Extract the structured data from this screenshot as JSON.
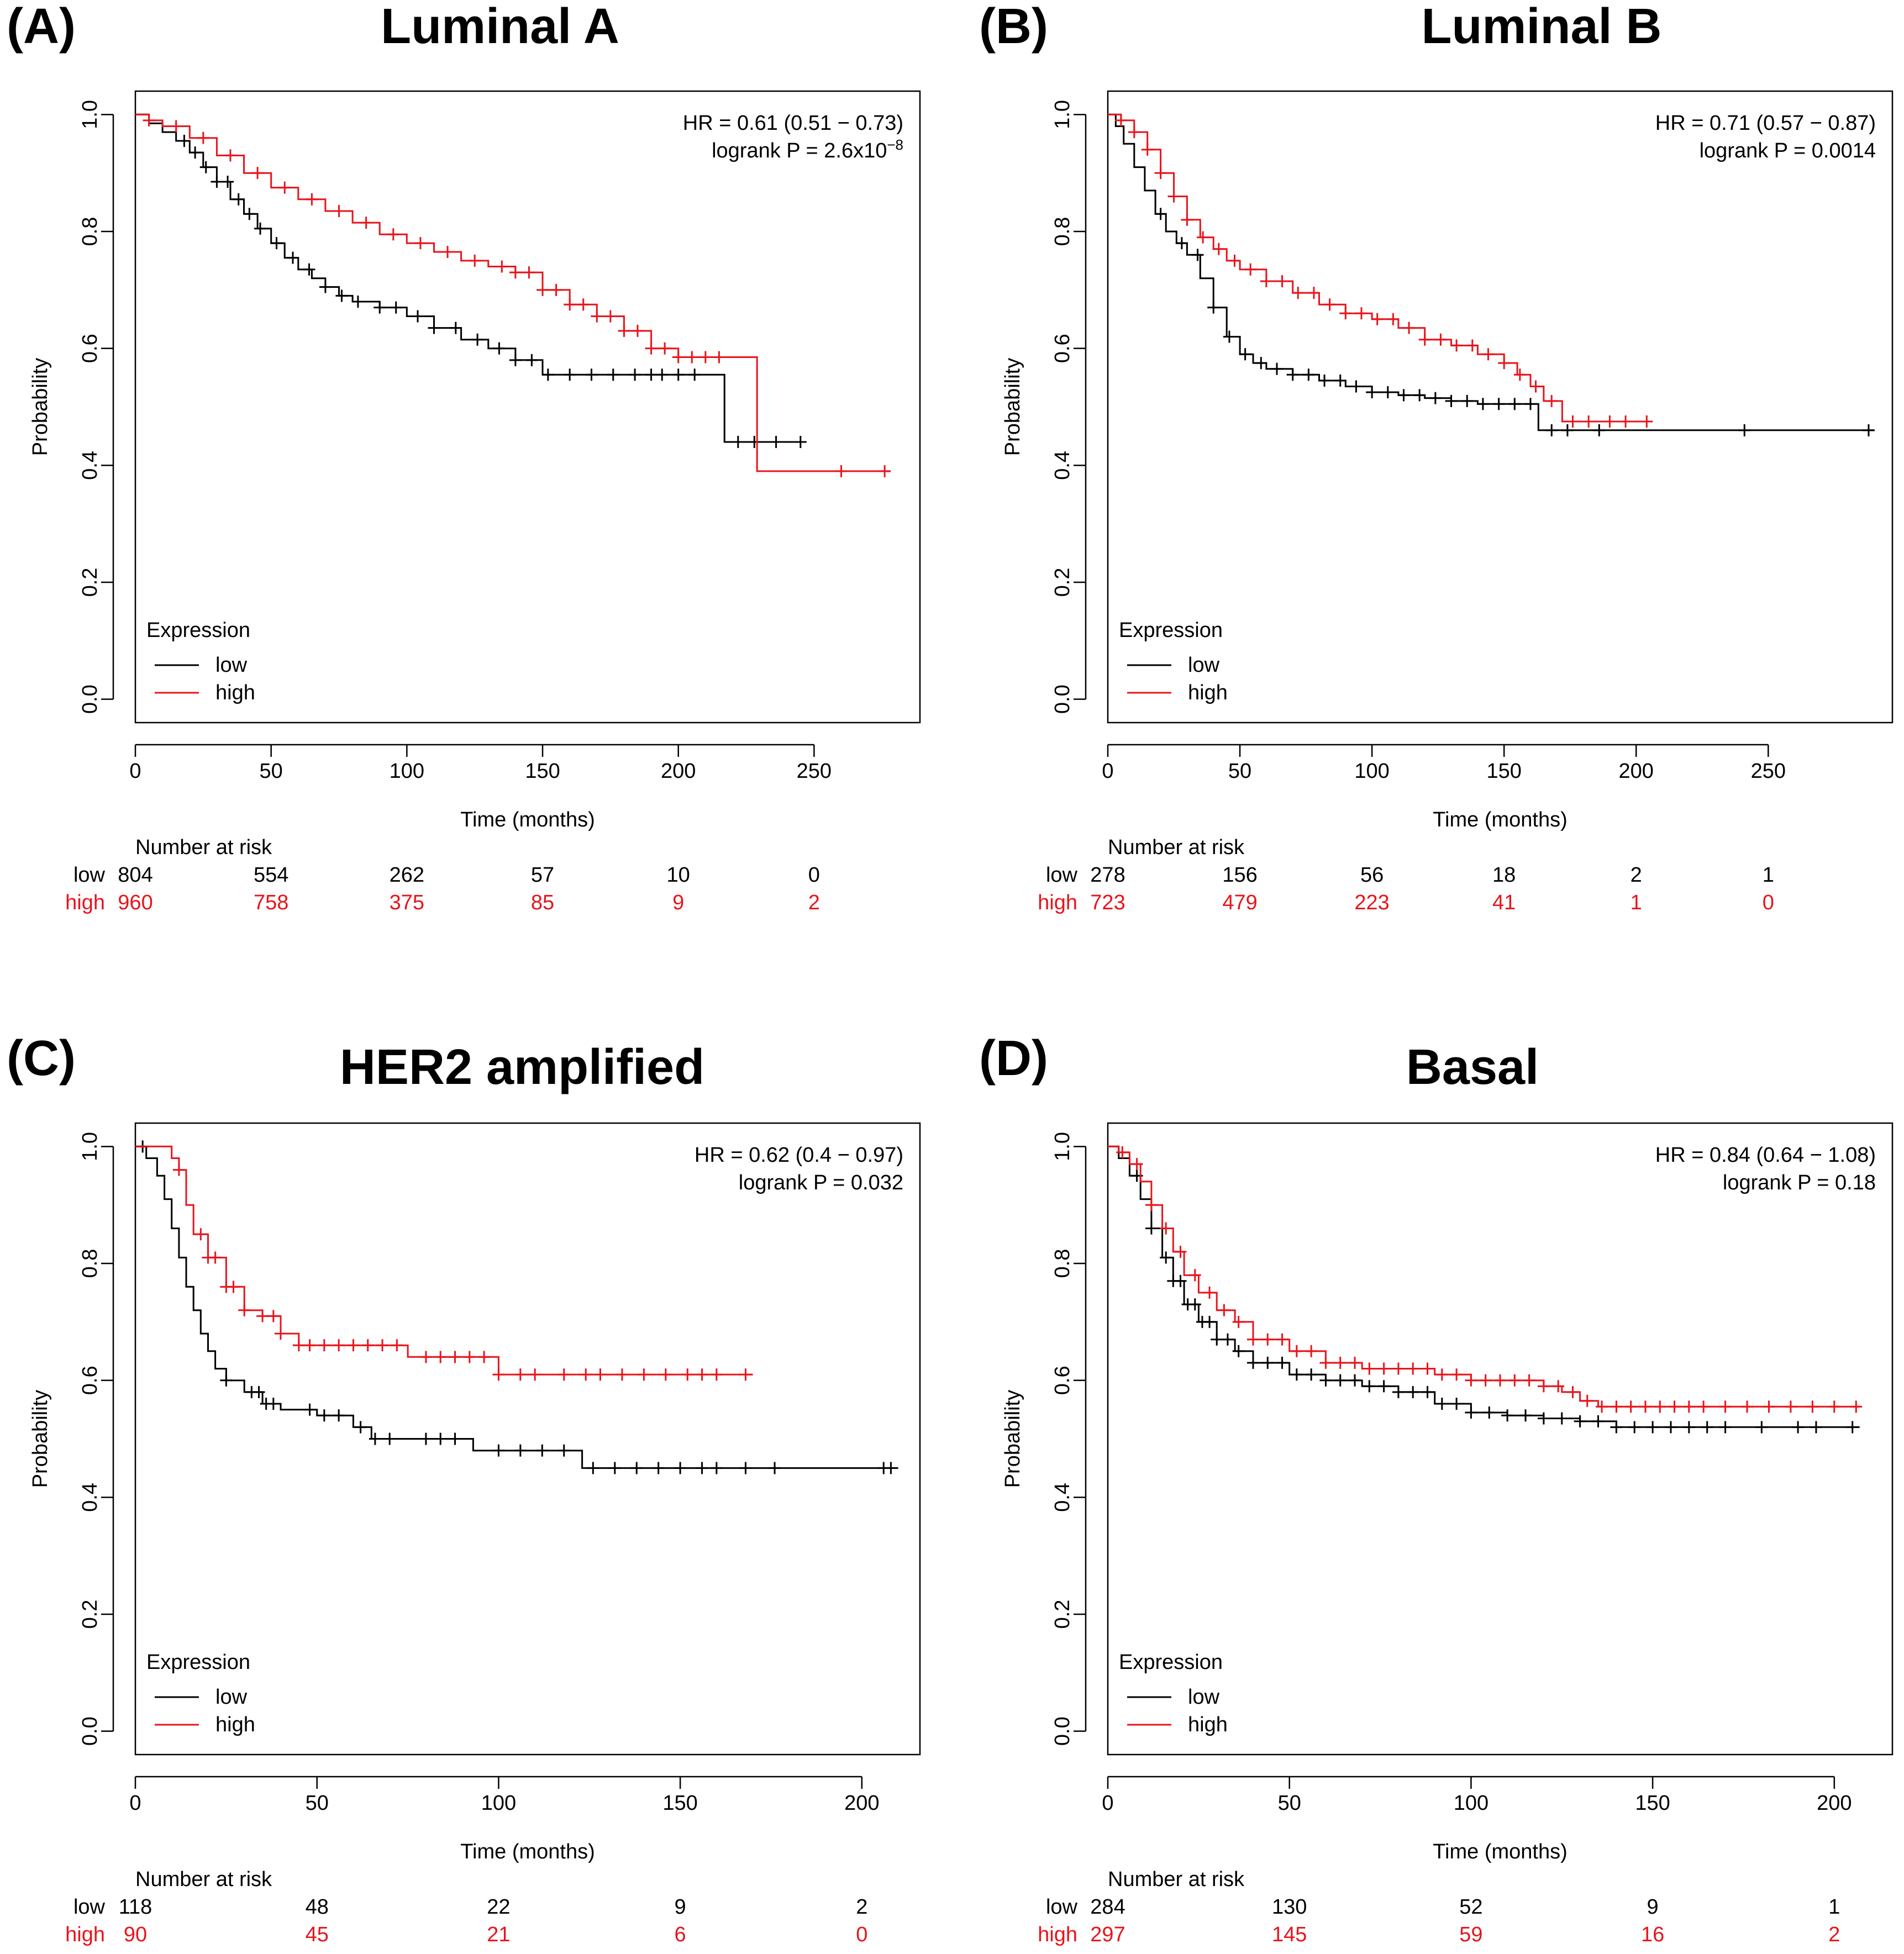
{
  "chart_data": [
    {
      "type": "line",
      "panel_label": "(A)",
      "title": "Luminal A",
      "ylabel": "Probability",
      "xlabel": "Time (months)",
      "xlim": [
        0,
        289
      ],
      "ylim": [
        -0.04,
        1.04
      ],
      "xticks": [
        "0",
        "50",
        "100",
        "150",
        "200",
        "250"
      ],
      "yticks": [
        "0.0",
        "0.2",
        "0.4",
        "0.6",
        "0.8",
        "1.0"
      ],
      "hr_text": "HR = 0.61 (0.51 − 0.73)",
      "p_text": "logrank P = 2.6x10",
      "p_exponent": "−8",
      "legend": {
        "title": "Expression",
        "entries": [
          "low",
          "high"
        ],
        "position": "bottom-left"
      },
      "series": [
        {
          "name": "low",
          "color": "#000000",
          "x": [
            0,
            5,
            10,
            15,
            20,
            25,
            30,
            35,
            40,
            45,
            50,
            55,
            60,
            65,
            70,
            75,
            80,
            90,
            100,
            110,
            120,
            130,
            140,
            150,
            160,
            170,
            180,
            190,
            200,
            210,
            217,
            217,
            245
          ],
          "y": [
            1.0,
            0.985,
            0.97,
            0.955,
            0.935,
            0.91,
            0.885,
            0.855,
            0.83,
            0.805,
            0.78,
            0.755,
            0.735,
            0.72,
            0.705,
            0.69,
            0.68,
            0.67,
            0.655,
            0.635,
            0.615,
            0.6,
            0.58,
            0.555,
            0.555,
            0.555,
            0.555,
            0.555,
            0.555,
            0.555,
            0.555,
            0.44,
            0.44
          ],
          "censor_x": [
            18,
            22,
            26,
            30,
            34,
            38,
            42,
            46,
            52,
            58,
            64,
            70,
            76,
            82,
            90,
            96,
            104,
            110,
            118,
            126,
            134,
            140,
            146,
            152,
            160,
            168,
            176,
            184,
            190,
            194,
            200,
            206,
            222,
            228,
            236,
            245
          ]
        },
        {
          "name": "high",
          "color": "#e8141c",
          "x": [
            0,
            5,
            10,
            20,
            30,
            40,
            50,
            60,
            70,
            80,
            90,
            100,
            110,
            120,
            130,
            140,
            150,
            160,
            170,
            180,
            190,
            200,
            229,
            229,
            278
          ],
          "y": [
            1.0,
            0.99,
            0.98,
            0.96,
            0.93,
            0.9,
            0.875,
            0.855,
            0.835,
            0.815,
            0.795,
            0.78,
            0.765,
            0.75,
            0.74,
            0.73,
            0.7,
            0.675,
            0.655,
            0.63,
            0.6,
            0.585,
            0.585,
            0.39,
            0.39
          ],
          "censor_x": [
            5,
            15,
            25,
            35,
            45,
            55,
            65,
            75,
            85,
            95,
            105,
            115,
            125,
            135,
            140,
            145,
            150,
            155,
            160,
            165,
            170,
            175,
            180,
            185,
            190,
            195,
            200,
            205,
            210,
            215,
            260,
            276
          ]
        }
      ],
      "risk_table": {
        "header": "Number at risk",
        "rows": [
          {
            "label": "low",
            "color": "#000000",
            "values": [
              "804",
              "554",
              "262",
              "57",
              "10",
              "0"
            ]
          },
          {
            "label": "high",
            "color": "#e8141c",
            "values": [
              "960",
              "758",
              "375",
              "85",
              "9",
              "2"
            ]
          }
        ]
      }
    },
    {
      "type": "line",
      "panel_label": "(B)",
      "title": "Luminal B",
      "ylabel": "Probability",
      "xlabel": "Time (months)",
      "xlim": [
        0,
        297
      ],
      "ylim": [
        -0.04,
        1.04
      ],
      "xticks": [
        "0",
        "50",
        "100",
        "150",
        "200",
        "250"
      ],
      "yticks": [
        "0.0",
        "0.2",
        "0.4",
        "0.6",
        "0.8",
        "1.0"
      ],
      "hr_text": "HR = 0.71 (0.57 − 0.87)",
      "p_text": "logrank P = 0.0014",
      "p_exponent": "",
      "legend": {
        "title": "Expression",
        "entries": [
          "low",
          "high"
        ],
        "position": "bottom-left"
      },
      "series": [
        {
          "name": "low",
          "color": "#000000",
          "x": [
            0,
            3,
            6,
            10,
            14,
            18,
            22,
            26,
            30,
            35,
            40,
            45,
            50,
            55,
            60,
            70,
            80,
            90,
            100,
            110,
            120,
            130,
            140,
            150,
            160,
            163,
            163,
            290
          ],
          "y": [
            1.0,
            0.98,
            0.95,
            0.91,
            0.87,
            0.83,
            0.8,
            0.78,
            0.76,
            0.72,
            0.67,
            0.62,
            0.59,
            0.575,
            0.565,
            0.555,
            0.545,
            0.535,
            0.525,
            0.52,
            0.515,
            0.51,
            0.505,
            0.505,
            0.505,
            0.505,
            0.46,
            0.46
          ],
          "censor_x": [
            20,
            28,
            34,
            40,
            46,
            52,
            58,
            64,
            70,
            76,
            82,
            88,
            94,
            100,
            106,
            112,
            118,
            124,
            130,
            136,
            142,
            148,
            154,
            160,
            168,
            174,
            186,
            241,
            288
          ]
        },
        {
          "name": "high",
          "color": "#e8141c",
          "x": [
            0,
            5,
            10,
            15,
            20,
            25,
            30,
            35,
            40,
            45,
            50,
            60,
            70,
            80,
            90,
            100,
            110,
            120,
            130,
            140,
            150,
            155,
            160,
            165,
            172,
            172,
            205
          ],
          "y": [
            1.0,
            0.99,
            0.97,
            0.94,
            0.9,
            0.86,
            0.82,
            0.79,
            0.77,
            0.75,
            0.735,
            0.715,
            0.695,
            0.675,
            0.66,
            0.65,
            0.635,
            0.615,
            0.605,
            0.59,
            0.575,
            0.555,
            0.535,
            0.51,
            0.51,
            0.475,
            0.475
          ],
          "censor_x": [
            5,
            10,
            15,
            20,
            25,
            30,
            36,
            42,
            48,
            54,
            60,
            66,
            72,
            78,
            84,
            90,
            96,
            102,
            108,
            114,
            120,
            126,
            132,
            138,
            144,
            150,
            156,
            162,
            168,
            176,
            182,
            190,
            196,
            204
          ]
        }
      ],
      "risk_table": {
        "header": "Number at risk",
        "rows": [
          {
            "label": "low",
            "color": "#000000",
            "values": [
              "278",
              "156",
              "56",
              "18",
              "2",
              "1"
            ]
          },
          {
            "label": "high",
            "color": "#e8141c",
            "values": [
              "723",
              "479",
              "223",
              "41",
              "1",
              "0"
            ]
          }
        ]
      }
    },
    {
      "type": "line",
      "panel_label": "(C)",
      "title": "HER2 amplified",
      "ylabel": "Probability",
      "xlabel": "Time (months)",
      "xlim": [
        0,
        216
      ],
      "ylim": [
        -0.04,
        1.04
      ],
      "xticks": [
        "0",
        "50",
        "100",
        "150",
        "200"
      ],
      "yticks": [
        "0.0",
        "0.2",
        "0.4",
        "0.6",
        "0.8",
        "1.0"
      ],
      "hr_text": "HR = 0.62 (0.4 − 0.97)",
      "p_text": "logrank P = 0.032",
      "p_exponent": "",
      "legend": {
        "title": "Expression",
        "entries": [
          "low",
          "high"
        ],
        "position": "bottom-left"
      },
      "series": [
        {
          "name": "low",
          "color": "#000000",
          "x": [
            0,
            3,
            6,
            8,
            10,
            12,
            14,
            16,
            18,
            20,
            22,
            25,
            30,
            35,
            40,
            50,
            58,
            60,
            65,
            90,
            93,
            120,
            123,
            210
          ],
          "y": [
            1.0,
            0.98,
            0.95,
            0.91,
            0.86,
            0.81,
            0.76,
            0.72,
            0.68,
            0.65,
            0.62,
            0.6,
            0.58,
            0.56,
            0.55,
            0.54,
            0.54,
            0.52,
            0.5,
            0.5,
            0.48,
            0.48,
            0.45,
            0.45
          ],
          "censor_x": [
            2,
            25,
            32,
            34,
            36,
            38,
            48,
            52,
            56,
            62,
            66,
            70,
            80,
            84,
            88,
            100,
            106,
            112,
            118,
            126,
            132,
            138,
            144,
            150,
            156,
            160,
            168,
            176,
            206,
            208
          ]
        },
        {
          "name": "high",
          "color": "#e8141c",
          "x": [
            0,
            5,
            10,
            12,
            14,
            16,
            20,
            25,
            30,
            35,
            40,
            45,
            55,
            65,
            70,
            72,
            75,
            80,
            98,
            100,
            170
          ],
          "y": [
            1.0,
            1.0,
            0.98,
            0.96,
            0.9,
            0.85,
            0.81,
            0.76,
            0.72,
            0.71,
            0.68,
            0.66,
            0.66,
            0.66,
            0.66,
            0.66,
            0.64,
            0.64,
            0.64,
            0.61,
            0.61
          ],
          "censor_x": [
            12,
            18,
            20,
            22,
            25,
            27,
            30,
            35,
            38,
            40,
            45,
            48,
            52,
            56,
            60,
            64,
            68,
            72,
            80,
            84,
            88,
            92,
            96,
            100,
            106,
            110,
            118,
            124,
            128,
            134,
            140,
            146,
            152,
            156,
            160,
            168
          ]
        }
      ],
      "risk_table": {
        "header": "Number at risk",
        "rows": [
          {
            "label": "low",
            "color": "#000000",
            "values": [
              "118",
              "48",
              "22",
              "9",
              "2"
            ]
          },
          {
            "label": "high",
            "color": "#e8141c",
            "values": [
              "90",
              "45",
              "21",
              "6",
              "0"
            ]
          }
        ]
      }
    },
    {
      "type": "line",
      "panel_label": "(D)",
      "title": "Basal",
      "ylabel": "Probability",
      "xlabel": "Time (months)",
      "xlim": [
        0,
        216
      ],
      "ylim": [
        -0.04,
        1.04
      ],
      "xticks": [
        "0",
        "50",
        "100",
        "150",
        "200"
      ],
      "yticks": [
        "0.0",
        "0.2",
        "0.4",
        "0.6",
        "0.8",
        "1.0"
      ],
      "hr_text": "HR = 0.84 (0.64 − 1.08)",
      "p_text": "logrank P = 0.18",
      "p_exponent": "",
      "legend": {
        "title": "Expression",
        "entries": [
          "low",
          "high"
        ],
        "position": "bottom-left"
      },
      "series": [
        {
          "name": "low",
          "color": "#000000",
          "x": [
            0,
            3,
            6,
            9,
            12,
            15,
            18,
            21,
            25,
            30,
            35,
            40,
            50,
            60,
            70,
            80,
            90,
            100,
            110,
            120,
            130,
            140,
            150,
            160,
            170,
            180,
            190,
            200,
            207
          ],
          "y": [
            1.0,
            0.98,
            0.95,
            0.91,
            0.86,
            0.81,
            0.77,
            0.73,
            0.7,
            0.67,
            0.65,
            0.63,
            0.61,
            0.6,
            0.59,
            0.58,
            0.56,
            0.545,
            0.54,
            0.535,
            0.53,
            0.52,
            0.52,
            0.52,
            0.52,
            0.52,
            0.52,
            0.52,
            0.52
          ],
          "censor_x": [
            8,
            12,
            16,
            18,
            20,
            22,
            24,
            26,
            28,
            30,
            33,
            36,
            40,
            44,
            48,
            52,
            56,
            60,
            64,
            68,
            72,
            76,
            80,
            84,
            88,
            92,
            96,
            100,
            105,
            110,
            115,
            120,
            125,
            130,
            135,
            140,
            145,
            150,
            155,
            160,
            165,
            170,
            180,
            190,
            195,
            205
          ]
        },
        {
          "name": "high",
          "color": "#e8141c",
          "x": [
            0,
            3,
            6,
            9,
            12,
            15,
            18,
            21,
            25,
            30,
            35,
            40,
            50,
            60,
            70,
            80,
            90,
            100,
            110,
            115,
            120,
            125,
            130,
            135,
            140,
            150,
            160,
            170,
            180,
            190,
            200,
            207
          ],
          "y": [
            1.0,
            0.99,
            0.97,
            0.94,
            0.9,
            0.86,
            0.82,
            0.78,
            0.75,
            0.72,
            0.7,
            0.67,
            0.65,
            0.63,
            0.62,
            0.62,
            0.61,
            0.6,
            0.6,
            0.6,
            0.59,
            0.58,
            0.565,
            0.555,
            0.555,
            0.555,
            0.555,
            0.555,
            0.555,
            0.555,
            0.555,
            0.555
          ],
          "censor_x": [
            4,
            8,
            12,
            16,
            20,
            24,
            28,
            32,
            36,
            40,
            44,
            48,
            52,
            56,
            60,
            64,
            68,
            72,
            76,
            80,
            84,
            88,
            92,
            96,
            100,
            104,
            108,
            112,
            116,
            120,
            124,
            128,
            132,
            136,
            140,
            144,
            148,
            152,
            156,
            160,
            164,
            170,
            176,
            182,
            188,
            194,
            200,
            206
          ]
        }
      ],
      "risk_table": {
        "header": "Number at risk",
        "rows": [
          {
            "label": "low",
            "color": "#000000",
            "values": [
              "284",
              "130",
              "52",
              "9",
              "1"
            ]
          },
          {
            "label": "high",
            "color": "#e8141c",
            "values": [
              "297",
              "145",
              "59",
              "16",
              "2"
            ]
          }
        ]
      }
    }
  ]
}
